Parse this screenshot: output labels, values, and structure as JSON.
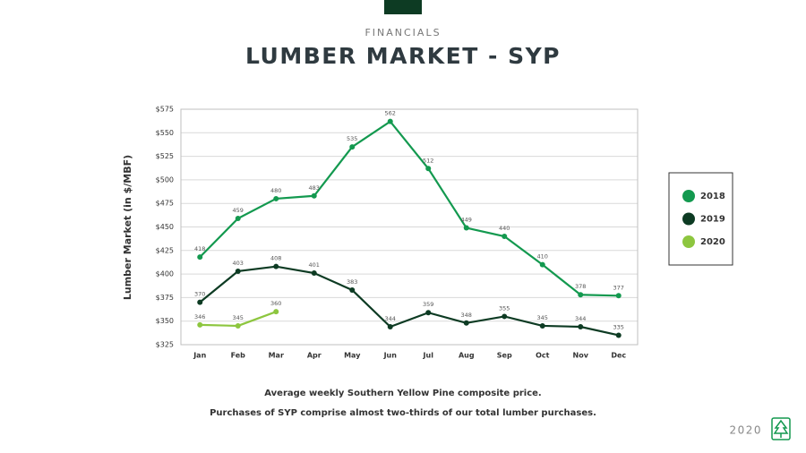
{
  "chart_data": {
    "type": "line",
    "subtitle": "FINANCIALS",
    "title": "LUMBER MARKET - SYP",
    "ylabel": "Lumber Market  (in $/MBF)",
    "categories": [
      "Jan",
      "Feb",
      "Mar",
      "Apr",
      "May",
      "Jun",
      "Jul",
      "Aug",
      "Sep",
      "Oct",
      "Nov",
      "Dec"
    ],
    "series": [
      {
        "name": "2018",
        "color": "#13994f",
        "values": [
          418,
          459,
          480,
          483,
          535,
          562,
          512,
          449,
          440,
          410,
          378,
          377
        ]
      },
      {
        "name": "2019",
        "color": "#0d3b23",
        "values": [
          370,
          403,
          408,
          401,
          383,
          344,
          359,
          348,
          355,
          345,
          344,
          335
        ]
      },
      {
        "name": "2020",
        "color": "#8dc63f",
        "values": [
          346,
          345,
          360,
          null,
          null,
          null,
          null,
          null,
          null,
          null,
          null,
          null
        ]
      }
    ],
    "ylim": [
      325,
      575
    ],
    "yticks": [
      {
        "value": 325,
        "label": "$325"
      },
      {
        "value": 350,
        "label": "$350"
      },
      {
        "value": 375,
        "label": "$375"
      },
      {
        "value": 400,
        "label": "$400"
      },
      {
        "value": 425,
        "label": "$425"
      },
      {
        "value": 450,
        "label": "$450"
      },
      {
        "value": 475,
        "label": "$475"
      },
      {
        "value": 500,
        "label": "$500"
      },
      {
        "value": 525,
        "label": "$525"
      },
      {
        "value": 550,
        "label": "$550"
      },
      {
        "value": 575,
        "label": "$575"
      }
    ],
    "grid": true,
    "legend": "right",
    "notes": [
      "Average weekly Southern Yellow Pine composite price.",
      "Purchases of SYP comprise almost two-thirds of our total lumber purchases."
    ]
  },
  "footer": {
    "year": "2020"
  }
}
